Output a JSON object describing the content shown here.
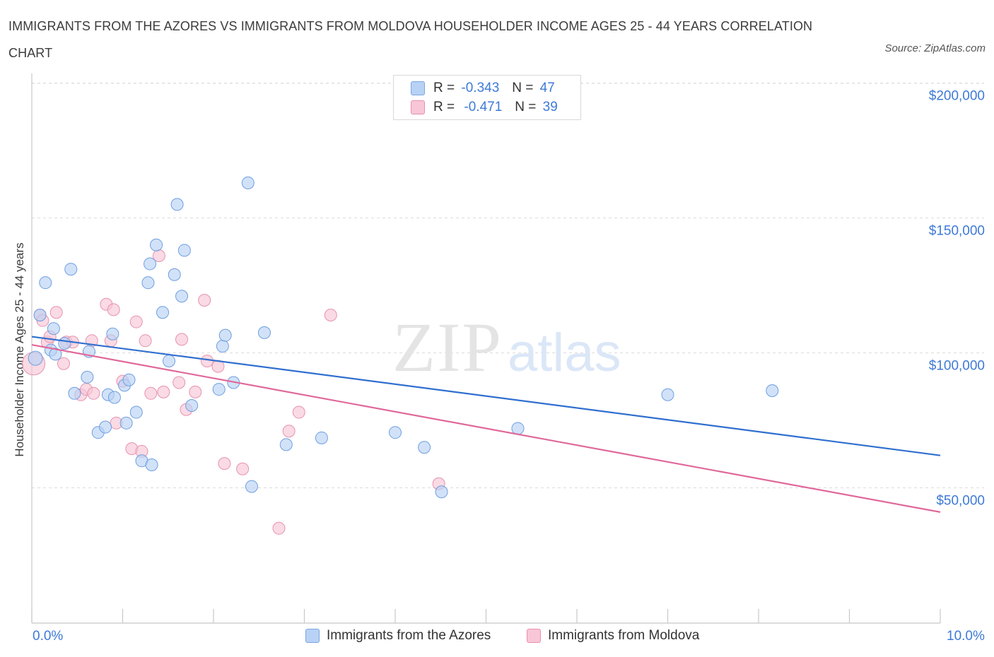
{
  "title": "IMMIGRANTS FROM THE AZORES VS IMMIGRANTS FROM MOLDOVA HOUSEHOLDER INCOME AGES 25 - 44 YEARS CORRELATION CHART",
  "source": "Source: ZipAtlas.com",
  "watermark": {
    "zip": "ZIP",
    "atlas": "atlas"
  },
  "legend_top": [
    {
      "r_label": "R =",
      "r_value": "-0.343",
      "n_label": "N =",
      "n_value": "47",
      "color": "#b8d2f5",
      "stroke": "#7aa6e0"
    },
    {
      "r_label": "R =",
      "r_value": "-0.471",
      "n_label": "N =",
      "n_value": "39",
      "color": "#f8c6d6",
      "stroke": "#e890ad"
    }
  ],
  "colors": {
    "azores_fill": "#b8d2f5",
    "azores_line": "#2f6fcf",
    "moldova_fill": "#f8c6d6",
    "moldova_line": "#e0689a",
    "tick_text": "#3d7ad6"
  },
  "chart_data": {
    "type": "scatter",
    "title": "IMMIGRANTS FROM THE AZORES VS IMMIGRANTS FROM MOLDOVA HOUSEHOLDER INCOME AGES 25 - 44 YEARS CORRELATION CHART",
    "xlabel": "",
    "ylabel": "Householder Income Ages 25 - 44 years",
    "xlim": [
      0,
      10
    ],
    "ylim": [
      5000,
      215000
    ],
    "x_tick_labels": [
      "0.0%",
      "10.0%"
    ],
    "y_ticks": [
      50000,
      100000,
      150000,
      200000
    ],
    "y_tick_labels": [
      "$50,000",
      "$100,000",
      "$150,000",
      "$200,000"
    ],
    "grid": true,
    "series": [
      {
        "name": "Immigrants from the Azores",
        "x": [
          0.04,
          0.09,
          0.15,
          0.21,
          0.24,
          0.26,
          0.36,
          0.43,
          0.47,
          0.61,
          0.63,
          0.73,
          0.81,
          0.84,
          0.89,
          0.91,
          1.02,
          1.04,
          1.07,
          1.15,
          1.21,
          1.28,
          1.3,
          1.32,
          1.37,
          1.44,
          1.51,
          1.57,
          1.6,
          1.65,
          1.68,
          1.76,
          2.06,
          2.1,
          2.13,
          2.22,
          2.38,
          2.42,
          2.56,
          2.8,
          3.19,
          4.0,
          4.32,
          4.51,
          5.35,
          7.0,
          8.15
        ],
        "y": [
          98000,
          114000,
          126000,
          101000,
          109000,
          99500,
          103500,
          131000,
          85000,
          91000,
          100500,
          70500,
          72500,
          84500,
          107000,
          83500,
          88000,
          74000,
          90000,
          78000,
          60000,
          126000,
          133000,
          58500,
          140000,
          115000,
          97000,
          129000,
          155000,
          121000,
          138000,
          80500,
          86500,
          102500,
          106500,
          89000,
          163000,
          50500,
          107500,
          66000,
          68500,
          70500,
          65000,
          48500,
          72000,
          84500,
          86000
        ]
      },
      {
        "name": "Immigrants from Moldova",
        "x": [
          0.02,
          0.09,
          0.12,
          0.17,
          0.2,
          0.27,
          0.35,
          0.38,
          0.45,
          0.54,
          0.6,
          0.66,
          0.68,
          0.82,
          0.87,
          0.9,
          0.93,
          1.0,
          1.1,
          1.15,
          1.21,
          1.25,
          1.31,
          1.4,
          1.45,
          1.62,
          1.65,
          1.7,
          1.8,
          1.9,
          1.93,
          2.05,
          2.12,
          2.32,
          2.72,
          2.83,
          2.94,
          3.29,
          4.48
        ],
        "y": [
          96000,
          114000,
          112000,
          104000,
          106000,
          115000,
          96000,
          104000,
          104000,
          84500,
          86500,
          104500,
          85000,
          118000,
          104500,
          116000,
          74000,
          89500,
          64500,
          111500,
          63500,
          104500,
          85000,
          136000,
          85500,
          89000,
          105000,
          79000,
          85500,
          119500,
          97000,
          95000,
          59000,
          57000,
          35000,
          71000,
          78000,
          114000,
          51500
        ]
      }
    ],
    "trendlines": [
      {
        "name": "Immigrants from the Azores",
        "x": [
          0,
          10
        ],
        "y": [
          106000,
          62000
        ]
      },
      {
        "name": "Immigrants from Moldova",
        "x": [
          0,
          10
        ],
        "y": [
          103000,
          41000
        ]
      }
    ]
  }
}
